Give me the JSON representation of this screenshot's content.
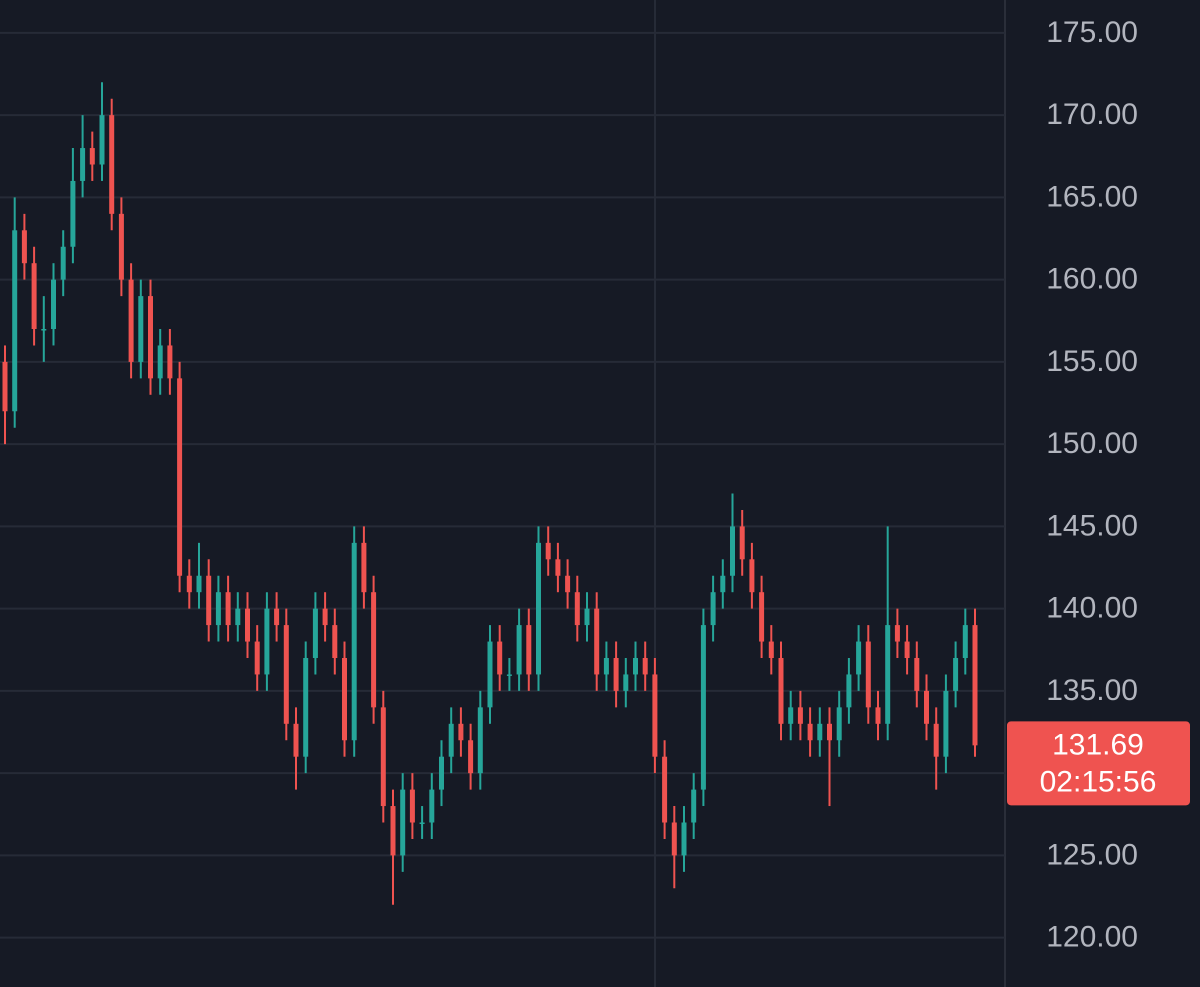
{
  "chart_data": {
    "type": "candlestick",
    "ylim": [
      117,
      177
    ],
    "yticks": [
      {
        "value": 120,
        "label": "120.00"
      },
      {
        "value": 125,
        "label": "125.00"
      },
      {
        "value": 130,
        "label": "130.00"
      },
      {
        "value": 135,
        "label": "135.00"
      },
      {
        "value": 140,
        "label": "140.00"
      },
      {
        "value": 145,
        "label": "145.00"
      },
      {
        "value": 150,
        "label": "150.00"
      },
      {
        "value": 155,
        "label": "155.00"
      },
      {
        "value": 160,
        "label": "160.00"
      },
      {
        "value": 165,
        "label": "165.00"
      },
      {
        "value": 170,
        "label": "170.00"
      },
      {
        "value": 175,
        "label": "175.00"
      }
    ],
    "grid": true,
    "up_color": "#26a69a",
    "down_color": "#ef5350",
    "series": [
      {
        "open": [
          155,
          152,
          163,
          161,
          157,
          157,
          160,
          162,
          166,
          168,
          167,
          170,
          164,
          160,
          155,
          159,
          154,
          156,
          154,
          142,
          141,
          142,
          139,
          141,
          139,
          140,
          138,
          136,
          140,
          139,
          133,
          131,
          137,
          140,
          139,
          137,
          132,
          144,
          141,
          134,
          128,
          125,
          129,
          127,
          127,
          129,
          131,
          133,
          132,
          130,
          134,
          138,
          136,
          136,
          139,
          136,
          144,
          143,
          142,
          141,
          139,
          140,
          136,
          137,
          135,
          136,
          137,
          136,
          131,
          127,
          125,
          127,
          129,
          139,
          141,
          142,
          145,
          143,
          141,
          138,
          137,
          133,
          134,
          133,
          132,
          133,
          132,
          134,
          136,
          138,
          134,
          133,
          139,
          138,
          137,
          135,
          133,
          131,
          135,
          137,
          139
        ],
        "high": [
          156,
          165,
          164,
          162,
          159,
          161,
          163,
          168,
          170,
          169,
          172,
          171,
          165,
          161,
          160,
          160,
          157,
          157,
          155,
          143,
          144,
          143,
          142,
          142,
          141,
          141,
          139,
          141,
          141,
          140,
          134,
          138,
          141,
          141,
          140,
          138,
          145,
          145,
          142,
          135,
          129,
          130,
          130,
          128,
          130,
          132,
          134,
          134,
          133,
          135,
          139,
          139,
          137,
          140,
          140,
          145,
          145,
          144,
          143,
          142,
          141,
          141,
          138,
          138,
          137,
          138,
          138,
          137,
          132,
          128,
          128,
          130,
          140,
          142,
          143,
          147,
          146,
          144,
          142,
          139,
          138,
          135,
          135,
          134,
          134,
          134,
          135,
          137,
          139,
          139,
          135,
          145,
          140,
          139,
          138,
          136,
          134,
          136,
          138,
          140,
          140
        ],
        "low": [
          150,
          151,
          160,
          156,
          155,
          156,
          159,
          161,
          165,
          166,
          166,
          163,
          159,
          154,
          154,
          153,
          153,
          153,
          141,
          140,
          140,
          138,
          138,
          138,
          138,
          137,
          135,
          135,
          138,
          132,
          129,
          130,
          136,
          138,
          136,
          131,
          131,
          140,
          133,
          127,
          122,
          124,
          126,
          126,
          126,
          128,
          130,
          131,
          129,
          129,
          133,
          135,
          135,
          135,
          135,
          135,
          142,
          141,
          140,
          138,
          138,
          135,
          135,
          134,
          134,
          135,
          135,
          130,
          126,
          123,
          124,
          126,
          128,
          138,
          140,
          141,
          142,
          140,
          137,
          136,
          132,
          132,
          132,
          131,
          131,
          128,
          131,
          133,
          135,
          133,
          132,
          132,
          137,
          136,
          134,
          132,
          129,
          130,
          134,
          136,
          131
        ],
        "close": [
          152,
          163,
          161,
          157,
          157,
          160,
          162,
          166,
          168,
          167,
          170,
          164,
          160,
          155,
          159,
          154,
          156,
          154,
          142,
          141,
          142,
          139,
          141,
          139,
          140,
          138,
          136,
          140,
          139,
          133,
          131,
          137,
          140,
          139,
          137,
          132,
          144,
          141,
          134,
          128,
          125,
          129,
          127,
          127,
          129,
          131,
          133,
          132,
          130,
          134,
          138,
          136,
          136,
          139,
          136,
          144,
          143,
          142,
          141,
          139,
          140,
          136,
          137,
          135,
          136,
          137,
          136,
          131,
          127,
          125,
          127,
          129,
          139,
          141,
          142,
          145,
          143,
          141,
          138,
          137,
          133,
          134,
          133,
          132,
          133,
          132,
          134,
          136,
          138,
          134,
          133,
          139,
          138,
          137,
          135,
          133,
          131,
          135,
          137,
          139,
          131.69
        ]
      }
    ],
    "last_price": {
      "value": 131.69,
      "countdown": "02:15:56",
      "color": "#ef5350"
    }
  }
}
